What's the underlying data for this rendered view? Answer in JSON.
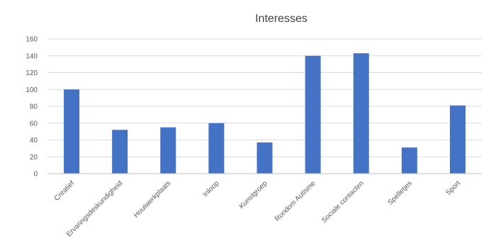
{
  "chart_data": {
    "type": "bar",
    "title": "Interesses",
    "xlabel": "",
    "ylabel": "",
    "categories": [
      "Creatief",
      "Ervaringsdeskundigheid",
      "Houtwerkplaats",
      "Inloop",
      "Kunstgroep",
      "Rondom Autisme",
      "Sociale contacten",
      "Spelletjes",
      "Sport"
    ],
    "values": [
      100,
      52,
      55,
      60,
      37,
      140,
      143,
      31,
      81
    ],
    "ylim": [
      0,
      160
    ],
    "yticks": [
      "0",
      "20",
      "40",
      "60",
      "80",
      "100",
      "120",
      "140",
      "160"
    ],
    "grid": true,
    "legend": "none",
    "bar_color": "#4472C4"
  }
}
